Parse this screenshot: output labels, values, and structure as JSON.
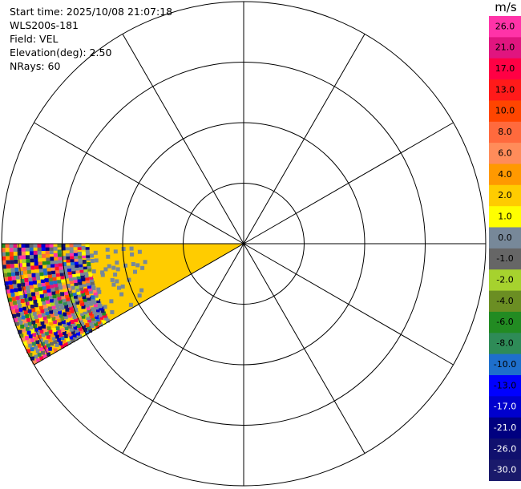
{
  "header": {
    "start_time": "Start time: 2025/10/08 21:07:18",
    "instrument": "WLS200s-181",
    "field": "Field: VEL",
    "elevation": "Elevation(deg): 2.50",
    "nrays": "NRays: 60"
  },
  "chart_data": {
    "type": "ppi",
    "field": "VEL",
    "unit": "m/s",
    "elevation_deg": 2.5,
    "nrays": 60,
    "range_rings": 4,
    "spoke_spacing_deg": 30,
    "sector_azimuth_deg": [
      240,
      270
    ],
    "sector_dominant_values_m_s": [
      2.0,
      4.0
    ],
    "far_range_noise": true,
    "colorbar": {
      "tick_labels": [
        "26.0",
        "21.0",
        "17.0",
        "13.0",
        "10.0",
        "8.0",
        "6.0",
        "4.0",
        "2.0",
        "1.0",
        "0.0",
        "-1.0",
        "-2.0",
        "-4.0",
        "-6.0",
        "-8.0",
        "-10.0",
        "-13.0",
        "-17.0",
        "-21.0",
        "-26.0",
        "-30.0"
      ],
      "colors": [
        "#ff33a8",
        "#e0157f",
        "#ff0044",
        "#ff1a1a",
        "#ff4500",
        "#ff6a3d",
        "#ff8c5a",
        "#ff9900",
        "#ffcc00",
        "#ffff00",
        "#778899",
        "#666666",
        "#a6d22e",
        "#6b8e23",
        "#228b22",
        "#2e8b57",
        "#1e6fcc",
        "#0000ff",
        "#0000cd",
        "#000080",
        "#10106e",
        "#1a1a6b"
      ]
    }
  }
}
